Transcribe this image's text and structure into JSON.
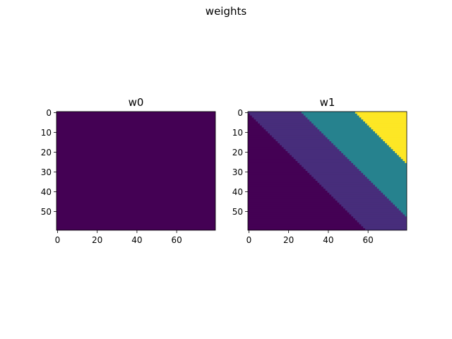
{
  "figure": {
    "suptitle": "weights"
  },
  "chart_data": [
    {
      "type": "heatmap",
      "title": "w0",
      "rows": 60,
      "cols": 80,
      "xlim": [
        0,
        80
      ],
      "ylim": [
        60,
        0
      ],
      "xticks": [
        0,
        20,
        40,
        60
      ],
      "yticks": [
        0,
        10,
        20,
        30,
        40,
        50
      ],
      "colormap": "viridis",
      "fill": "#440154",
      "regions": [
        {
          "expr": "constant",
          "value": 0,
          "color": "#440154"
        }
      ]
    },
    {
      "type": "heatmap",
      "title": "w1",
      "rows": 60,
      "cols": 80,
      "xlim": [
        0,
        80
      ],
      "ylim": [
        60,
        0
      ],
      "xticks": [
        0,
        20,
        40,
        60
      ],
      "yticks": [
        0,
        10,
        20,
        30,
        40,
        50
      ],
      "colormap": "viridis",
      "bands": [
        {
          "condition": "col - row < 0",
          "color": "#440154"
        },
        {
          "condition": "0 <= col - row < 27",
          "color": "#472d7b"
        },
        {
          "condition": "27 <= col - row < 54",
          "color": "#26828e"
        },
        {
          "condition": "col - row >= 54",
          "color": "#fde725"
        }
      ]
    }
  ]
}
